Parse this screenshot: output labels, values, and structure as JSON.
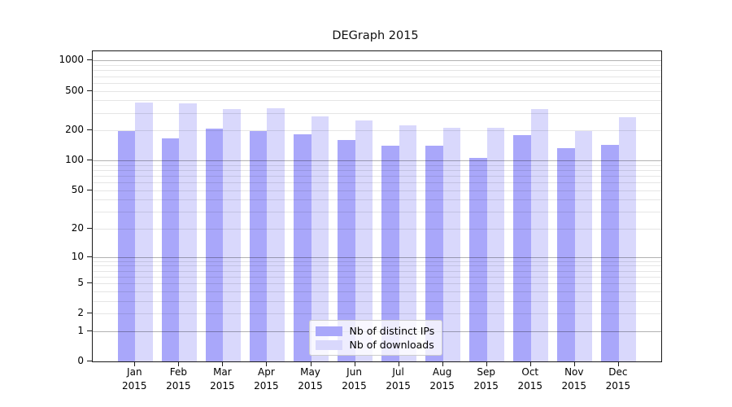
{
  "chart_data": {
    "type": "bar",
    "title": "DEGraph 2015",
    "year": "2015",
    "categories": [
      "Jan",
      "Feb",
      "Mar",
      "Apr",
      "May",
      "Jun",
      "Jul",
      "Aug",
      "Sep",
      "Oct",
      "Nov",
      "Dec"
    ],
    "series": [
      {
        "name": "Nb of distinct IPs",
        "color": "#a9a7fa",
        "values": [
          197,
          166,
          209,
          197,
          184,
          161,
          140,
          142,
          107,
          180,
          134,
          143
        ]
      },
      {
        "name": "Nb of downloads",
        "color": "#d9d8fc",
        "values": [
          380,
          373,
          330,
          332,
          278,
          250,
          226,
          213,
          213,
          329,
          197,
          272
        ]
      }
    ],
    "xlabel": "",
    "ylabel": "",
    "yscale": "log1p",
    "yticks": [
      0,
      1,
      2,
      5,
      10,
      20,
      50,
      100,
      200,
      500,
      1000
    ],
    "minor_grid_values": [
      2,
      3,
      4,
      5,
      6,
      7,
      8,
      9,
      20,
      30,
      40,
      50,
      60,
      70,
      80,
      90,
      200,
      300,
      400,
      500,
      600,
      700,
      800,
      900
    ],
    "major_grid_values": [
      1,
      10,
      100,
      1000
    ],
    "ylim": [
      0,
      1240
    ],
    "grid": "both",
    "grid_above_bars": true,
    "legend_position": "lower center"
  }
}
